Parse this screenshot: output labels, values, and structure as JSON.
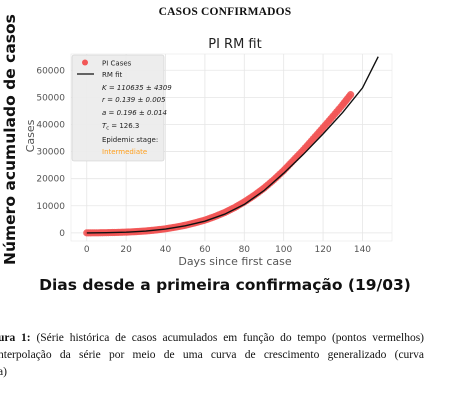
{
  "document": {
    "title": "CASOS CONFIRMADOS",
    "outer_ylabel": "Número acumulado de casos",
    "outer_xlabel": "Dias desde a primeira confirmação (19/03)",
    "caption": {
      "label": "ura 1:",
      "line1": "(Série histórica de casos acumulados em função do tempo (pontos vermelhos)",
      "line2": "nterpolação da série por meio de uma curva de crescimento generalizado (curva",
      "line3": "a)"
    }
  },
  "chart_data": {
    "type": "scatter",
    "title": "PI RM fit",
    "xlabel": "Days since first case",
    "ylabel": "Cases",
    "xlim": [
      -8,
      155
    ],
    "ylim": [
      -3000,
      66000
    ],
    "xticks": [
      0,
      20,
      40,
      60,
      80,
      100,
      120,
      140
    ],
    "yticks": [
      0,
      10000,
      20000,
      30000,
      40000,
      50000,
      60000
    ],
    "xtick_labels": [
      "0",
      "20",
      "40",
      "60",
      "80",
      "100",
      "120",
      "140"
    ],
    "ytick_labels": [
      "0",
      "10000",
      "20000",
      "30000",
      "40000",
      "50000",
      "60000"
    ],
    "grid": true,
    "legend_placement": "top-left",
    "series": [
      {
        "name": "PI Cases",
        "kind": "points",
        "color": "#f25757",
        "x": [
          0,
          5,
          10,
          15,
          20,
          25,
          30,
          35,
          40,
          45,
          50,
          55,
          60,
          65,
          70,
          75,
          80,
          85,
          90,
          95,
          100,
          105,
          110,
          115,
          120,
          125,
          130,
          134
        ],
        "y": [
          0,
          20,
          70,
          160,
          280,
          450,
          700,
          1050,
          1500,
          2100,
          2800,
          3700,
          4700,
          6000,
          7500,
          9300,
          11400,
          13800,
          16500,
          19600,
          23000,
          26800,
          30600,
          34700,
          38800,
          43000,
          47300,
          51000
        ]
      },
      {
        "name": "RM fit",
        "kind": "line",
        "color": "#111111",
        "x": [
          0,
          10,
          20,
          30,
          40,
          50,
          60,
          70,
          80,
          90,
          100,
          110,
          120,
          130,
          140,
          148
        ],
        "y": [
          0,
          50,
          250,
          650,
          1400,
          2600,
          4300,
          6900,
          10500,
          15600,
          22000,
          29000,
          36500,
          44500,
          53500,
          65000
        ]
      }
    ],
    "legend_params": {
      "K": "K = 110635 ± 4309",
      "r": "r = 0.139 ± 0.005",
      "a": "a = 0.196 ± 0.014",
      "Tc": "T",
      "Tc_sub": "c",
      "Tc_val": " = 126.3",
      "stage_label": "Epidemic stage:",
      "stage_value": "Intermediate",
      "stage_color": "#ff9f1c"
    }
  }
}
